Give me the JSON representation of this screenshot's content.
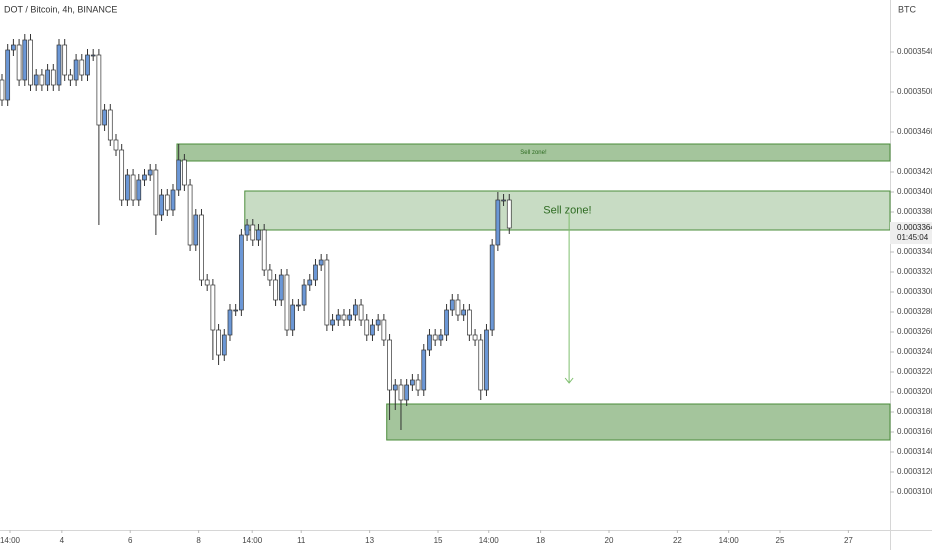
{
  "chart_data": {
    "type": "candlestick",
    "title": "DOT / Bitcoin, 4h, BINANCE",
    "y_axis_label": "BTC",
    "up_color": "#6b97d6",
    "down_color": "#ffffff",
    "ylim": [
      0.0003062,
      0.0003592
    ],
    "xlim": [
      -0.35,
      155.8
    ],
    "yticks": [
      {
        "value": 0.00031,
        "label": "0.0003100"
      },
      {
        "value": 0.000312,
        "label": "0.0003120"
      },
      {
        "value": 0.000314,
        "label": "0.0003140"
      },
      {
        "value": 0.000316,
        "label": "0.0003160"
      },
      {
        "value": 0.000318,
        "label": "0.0003180"
      },
      {
        "value": 0.00032,
        "label": "0.0003200"
      },
      {
        "value": 0.000322,
        "label": "0.0003220"
      },
      {
        "value": 0.000324,
        "label": "0.0003240"
      },
      {
        "value": 0.000326,
        "label": "0.0003260"
      },
      {
        "value": 0.000328,
        "label": "0.0003280"
      },
      {
        "value": 0.00033,
        "label": "0.0003300"
      },
      {
        "value": 0.000332,
        "label": "0.0003320"
      },
      {
        "value": 0.000334,
        "label": "0.0003340"
      },
      {
        "value": 0.000338,
        "label": "0.0003380"
      },
      {
        "value": 0.00034,
        "label": "0.0003400"
      },
      {
        "value": 0.000342,
        "label": "0.0003420"
      },
      {
        "value": 0.000346,
        "label": "0.0003460"
      },
      {
        "value": 0.00035,
        "label": "0.0003500"
      },
      {
        "value": 0.000354,
        "label": "0.0003540"
      }
    ],
    "xticks": [
      {
        "value": 1.4,
        "label": "14:00"
      },
      {
        "value": 10.5,
        "label": "4"
      },
      {
        "value": 22.5,
        "label": "6"
      },
      {
        "value": 34.5,
        "label": "8"
      },
      {
        "value": 43.9,
        "label": "14:00"
      },
      {
        "value": 52.5,
        "label": "11"
      },
      {
        "value": 64.5,
        "label": "13"
      },
      {
        "value": 76.5,
        "label": "15"
      },
      {
        "value": 85.4,
        "label": "14:00"
      },
      {
        "value": 94.5,
        "label": "18"
      },
      {
        "value": 106.5,
        "label": "20"
      },
      {
        "value": 118.5,
        "label": "22"
      },
      {
        "value": 127.5,
        "label": "14:00"
      },
      {
        "value": 136.5,
        "label": "25"
      },
      {
        "value": 148.5,
        "label": "27"
      }
    ],
    "open": [
      0.0003512,
      0.0003492,
      0.0003542,
      0.0003547,
      0.0003512,
      0.0003552,
      0.0003507,
      0.0003517,
      0.0003507,
      0.0003522,
      0.0003507,
      0.0003547,
      0.0003517,
      0.0003512,
      0.0003532,
      0.0003517,
      0.0003537,
      0.0003537,
      0.0003467,
      0.0003482,
      0.0003452,
      0.0003442,
      0.0003392,
      0.0003417,
      0.0003392,
      0.0003412,
      0.0003417,
      0.0003422,
      0.0003377,
      0.0003397,
      0.0003382,
      0.0003402,
      0.0003432,
      0.0003407,
      0.0003347,
      0.0003377,
      0.0003312,
      0.0003307,
      0.0003262,
      0.0003237,
      0.0003257,
      0.0003282,
      0.0003282,
      0.0003357,
      0.0003367,
      0.0003352,
      0.0003362,
      0.0003322,
      0.0003312,
      0.0003292,
      0.0003317,
      0.0003262,
      0.0003287,
      0.0003287,
      0.0003307,
      0.0003312,
      0.0003327,
      0.0003332,
      0.0003267,
      0.0003272,
      0.0003277,
      0.0003272,
      0.0003277,
      0.0003287,
      0.0003272,
      0.0003257,
      0.0003267,
      0.0003272,
      0.0003252,
      0.0003202,
      0.0003207,
      0.0003192,
      0.0003207,
      0.0003212,
      0.0003202,
      0.0003242,
      0.0003257,
      0.0003252,
      0.0003257,
      0.0003282,
      0.0003292,
      0.0003277,
      0.0003282,
      0.0003257,
      0.0003252,
      0.0003202,
      0.0003262,
      0.0003347,
      0.0003392,
      0.0003392
    ],
    "high": [
      0.0003518,
      0.0003548,
      0.0003553,
      0.0003553,
      0.0003558,
      0.0003558,
      0.0003523,
      0.0003523,
      0.0003528,
      0.0003528,
      0.0003553,
      0.0003553,
      0.0003523,
      0.0003538,
      0.0003538,
      0.0003543,
      0.0003543,
      0.0003543,
      0.0003488,
      0.0003488,
      0.0003458,
      0.0003448,
      0.0003423,
      0.0003423,
      0.0003418,
      0.0003423,
      0.0003428,
      0.0003428,
      0.0003403,
      0.0003403,
      0.0003408,
      0.0003448,
      0.0003438,
      0.0003413,
      0.0003383,
      0.0003383,
      0.0003318,
      0.0003313,
      0.0003268,
      0.0003263,
      0.0003288,
      0.0003288,
      0.0003363,
      0.0003373,
      0.0003373,
      0.0003368,
      0.0003368,
      0.0003328,
      0.0003318,
      0.0003323,
      0.0003323,
      0.0003293,
      0.0003293,
      0.0003313,
      0.0003318,
      0.0003333,
      0.0003338,
      0.0003338,
      0.0003278,
      0.0003283,
      0.0003283,
      0.0003283,
      0.0003293,
      0.0003293,
      0.0003278,
      0.0003273,
      0.0003278,
      0.0003278,
      0.0003258,
      0.0003213,
      0.0003213,
      0.0003213,
      0.0003218,
      0.0003218,
      0.0003248,
      0.0003263,
      0.0003263,
      0.0003263,
      0.0003288,
      0.0003298,
      0.0003298,
      0.0003288,
      0.0003288,
      0.0003263,
      0.0003258,
      0.0003268,
      0.0003353,
      0.00034,
      0.0003398,
      0.0003398
    ],
    "low": [
      0.0003486,
      0.0003486,
      0.0003536,
      0.0003506,
      0.0003506,
      0.0003501,
      0.0003501,
      0.0003501,
      0.0003501,
      0.0003501,
      0.0003501,
      0.0003511,
      0.0003506,
      0.0003506,
      0.0003511,
      0.0003511,
      0.0003531,
      0.0003367,
      0.0003461,
      0.0003446,
      0.0003436,
      0.0003386,
      0.0003386,
      0.0003386,
      0.0003386,
      0.0003406,
      0.0003411,
      0.0003357,
      0.0003371,
      0.0003376,
      0.0003376,
      0.0003396,
      0.0003401,
      0.0003341,
      0.0003341,
      0.0003306,
      0.0003301,
      0.0003232,
      0.0003227,
      0.0003231,
      0.0003251,
      0.0003276,
      0.0003276,
      0.0003351,
      0.0003346,
      0.0003346,
      0.0003316,
      0.0003306,
      0.0003286,
      0.0003286,
      0.0003256,
      0.0003256,
      0.0003281,
      0.0003281,
      0.0003301,
      0.0003306,
      0.0003321,
      0.0003261,
      0.0003261,
      0.0003266,
      0.0003266,
      0.0003266,
      0.0003271,
      0.0003266,
      0.0003251,
      0.0003251,
      0.0003261,
      0.0003246,
      0.0003172,
      0.0003182,
      0.0003162,
      0.0003186,
      0.0003201,
      0.0003196,
      0.0003196,
      0.0003236,
      0.0003246,
      0.0003246,
      0.0003251,
      0.0003276,
      0.0003271,
      0.0003271,
      0.0003251,
      0.0003246,
      0.0003192,
      0.0003196,
      0.0003256,
      0.0003341,
      0.0003386,
      0.0003358
    ],
    "close": [
      0.0003492,
      0.0003542,
      0.0003547,
      0.0003512,
      0.0003552,
      0.0003507,
      0.0003517,
      0.0003507,
      0.0003522,
      0.0003507,
      0.0003547,
      0.0003517,
      0.0003512,
      0.0003532,
      0.0003517,
      0.0003537,
      0.0003537,
      0.0003467,
      0.0003482,
      0.0003452,
      0.0003442,
      0.0003392,
      0.0003417,
      0.0003392,
      0.0003412,
      0.0003417,
      0.0003422,
      0.0003377,
      0.0003397,
      0.0003382,
      0.0003402,
      0.0003432,
      0.0003407,
      0.0003347,
      0.0003377,
      0.0003312,
      0.0003307,
      0.0003262,
      0.0003237,
      0.0003257,
      0.0003282,
      0.0003282,
      0.0003357,
      0.0003367,
      0.0003352,
      0.0003362,
      0.0003322,
      0.0003312,
      0.0003292,
      0.0003317,
      0.0003262,
      0.0003287,
      0.0003287,
      0.0003307,
      0.0003312,
      0.0003327,
      0.0003332,
      0.0003267,
      0.0003272,
      0.0003277,
      0.0003272,
      0.0003277,
      0.0003287,
      0.0003272,
      0.0003257,
      0.0003267,
      0.0003272,
      0.0003252,
      0.0003202,
      0.0003207,
      0.0003192,
      0.0003207,
      0.0003212,
      0.0003202,
      0.0003242,
      0.0003257,
      0.0003252,
      0.0003257,
      0.0003282,
      0.0003292,
      0.0003277,
      0.0003282,
      0.0003257,
      0.0003252,
      0.0003202,
      0.0003262,
      0.0003347,
      0.0003392,
      0.0003392,
      0.0003364
    ],
    "zones": [
      {
        "low": 0.0003431,
        "high": 0.0003448,
        "start": 30.7,
        "label": "Sell zone!"
      },
      {
        "low": 0.0003362,
        "high": 0.0003401,
        "start": 42.6,
        "label": "Sell zone!"
      },
      {
        "low": 0.0003152,
        "high": 0.0003188,
        "start": 67.5
      }
    ],
    "zone_color": "#4a8c3a",
    "arrow": {
      "x": 99.5,
      "from": 0.0003379,
      "to": 0.0003209
    },
    "current_price": {
      "value": 0.0003364,
      "label": "0.0003364"
    },
    "countdown": "01:45:04"
  }
}
